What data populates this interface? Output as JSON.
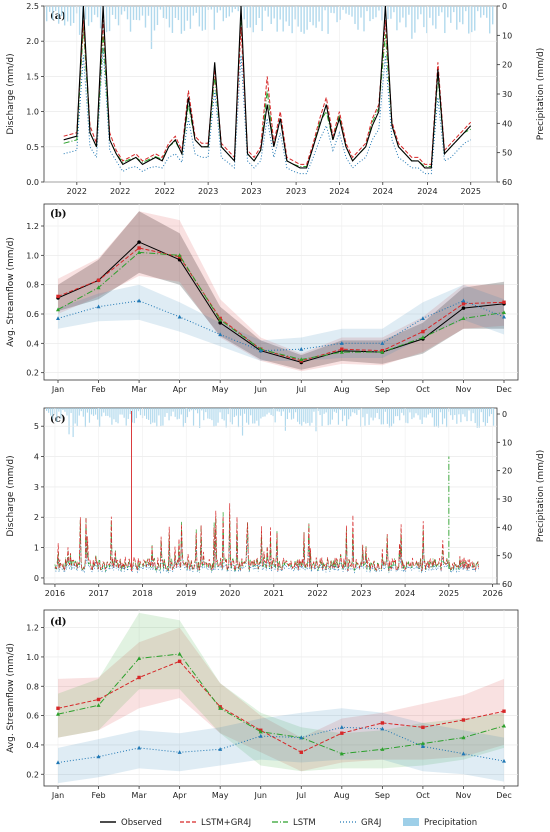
{
  "colors": {
    "observed": "#000000",
    "lstm_gr4j": "#d62728",
    "lstm": "#2ca02c",
    "gr4j": "#1f77b4",
    "precip": "#9ecfe8"
  },
  "legend": [
    "Observed",
    "LSTM+GR4J",
    "LSTM",
    "GR4J",
    "Precipitation"
  ],
  "chart_data": [
    {
      "panel": "(a)",
      "type": "line",
      "ylabel": "Discharge (mm/d)",
      "y2label": "Precipitation (mm/d)",
      "ylim": [
        0,
        2.5
      ],
      "y2lim": [
        60,
        0
      ],
      "xlim": [
        2021.75,
        2025.2
      ],
      "xticks": [
        "2022",
        "2022",
        "2022",
        "2023",
        "2023",
        "2023",
        "2024",
        "2024",
        "2024",
        "2025"
      ],
      "yticks": [
        "0.0",
        "0.5",
        "1.0",
        "1.5",
        "2.0",
        "2.5"
      ],
      "y2ticks": [
        "0",
        "10",
        "20",
        "30",
        "40",
        "50",
        "60"
      ],
      "x": [
        2021.9,
        2022.0,
        2022.05,
        2022.1,
        2022.15,
        2022.2,
        2022.25,
        2022.3,
        2022.35,
        2022.4,
        2022.45,
        2022.5,
        2022.55,
        2022.6,
        2022.65,
        2022.7,
        2022.75,
        2022.8,
        2022.85,
        2022.9,
        2022.95,
        2023.0,
        2023.05,
        2023.1,
        2023.15,
        2023.2,
        2023.25,
        2023.3,
        2023.35,
        2023.4,
        2023.45,
        2023.5,
        2023.55,
        2023.6,
        2023.65,
        2023.7,
        2023.75,
        2023.8,
        2023.85,
        2023.9,
        2023.95,
        2024.0,
        2024.05,
        2024.1,
        2024.15,
        2024.2,
        2024.25,
        2024.3,
        2024.35,
        2024.4,
        2024.45,
        2024.5,
        2024.55,
        2024.6,
        2024.65,
        2024.7,
        2024.75,
        2024.8,
        2024.85,
        2024.9,
        2024.95,
        2025.0
      ],
      "series": [
        {
          "name": "Observed",
          "values": [
            0.6,
            0.65,
            2.5,
            0.7,
            0.5,
            2.5,
            0.6,
            0.4,
            0.25,
            0.3,
            0.35,
            0.25,
            0.3,
            0.35,
            0.3,
            0.5,
            0.6,
            0.4,
            1.2,
            0.6,
            0.5,
            0.5,
            1.7,
            0.5,
            0.4,
            0.3,
            2.5,
            0.4,
            0.3,
            0.45,
            1.1,
            0.5,
            0.9,
            0.3,
            0.25,
            0.2,
            0.2,
            0.5,
            0.8,
            1.1,
            0.6,
            0.9,
            0.5,
            0.3,
            0.4,
            0.5,
            0.8,
            1.0,
            2.5,
            0.8,
            0.5,
            0.4,
            0.3,
            0.3,
            0.2,
            0.2,
            1.6,
            0.4,
            0.5,
            0.6,
            0.7,
            0.8
          ]
        },
        {
          "name": "LSTM+GR4J",
          "values": [
            0.65,
            0.7,
            2.3,
            0.8,
            0.55,
            2.3,
            0.7,
            0.45,
            0.3,
            0.35,
            0.4,
            0.3,
            0.35,
            0.4,
            0.35,
            0.55,
            0.65,
            0.45,
            1.3,
            0.65,
            0.55,
            0.55,
            1.6,
            0.55,
            0.45,
            0.35,
            2.2,
            0.45,
            0.35,
            0.5,
            1.5,
            0.55,
            1.0,
            0.35,
            0.3,
            0.25,
            0.25,
            0.55,
            0.9,
            1.2,
            0.65,
            1.0,
            0.55,
            0.35,
            0.45,
            0.55,
            0.9,
            1.1,
            2.3,
            0.85,
            0.55,
            0.45,
            0.35,
            0.35,
            0.25,
            0.25,
            1.7,
            0.45,
            0.55,
            0.65,
            0.75,
            0.85
          ]
        },
        {
          "name": "LSTM",
          "values": [
            0.55,
            0.6,
            2.2,
            0.7,
            0.5,
            2.1,
            0.6,
            0.4,
            0.28,
            0.32,
            0.35,
            0.28,
            0.32,
            0.36,
            0.32,
            0.5,
            0.58,
            0.4,
            1.1,
            0.6,
            0.5,
            0.5,
            1.5,
            0.5,
            0.4,
            0.3,
            2.4,
            0.4,
            0.3,
            0.45,
            1.3,
            0.5,
            0.9,
            0.3,
            0.25,
            0.22,
            0.22,
            0.5,
            0.85,
            1.0,
            0.6,
            0.95,
            0.5,
            0.3,
            0.4,
            0.5,
            0.85,
            1.05,
            2.1,
            0.8,
            0.5,
            0.4,
            0.3,
            0.3,
            0.22,
            0.22,
            1.5,
            0.4,
            0.5,
            0.6,
            0.7,
            0.75
          ]
        },
        {
          "name": "GR4J",
          "values": [
            0.4,
            0.45,
            1.8,
            0.5,
            0.35,
            1.9,
            0.45,
            0.3,
            0.15,
            0.2,
            0.22,
            0.15,
            0.2,
            0.22,
            0.2,
            0.35,
            0.4,
            0.28,
            0.9,
            0.4,
            0.35,
            0.35,
            1.3,
            0.35,
            0.28,
            0.2,
            1.8,
            0.3,
            0.2,
            0.3,
            0.9,
            0.35,
            0.7,
            0.2,
            0.15,
            0.12,
            0.12,
            0.35,
            0.6,
            0.8,
            0.45,
            0.7,
            0.35,
            0.2,
            0.28,
            0.35,
            0.6,
            0.75,
            1.8,
            0.6,
            0.35,
            0.28,
            0.2,
            0.2,
            0.12,
            0.12,
            1.2,
            0.3,
            0.35,
            0.45,
            0.55,
            0.6
          ]
        }
      ]
    },
    {
      "panel": "(b)",
      "type": "line",
      "ylabel": "Avg. Streamflow (mm/d)",
      "ylim": [
        0.15,
        1.35
      ],
      "categories": [
        "Jan",
        "Feb",
        "Mar",
        "Apr",
        "May",
        "Jun",
        "Jul",
        "Aug",
        "Sep",
        "Oct",
        "Nov",
        "Dec"
      ],
      "yticks": [
        "0.2",
        "0.4",
        "0.6",
        "0.8",
        "1.0",
        "1.2"
      ],
      "series": [
        {
          "name": "Observed",
          "values": [
            0.71,
            0.83,
            1.09,
            0.97,
            0.54,
            0.35,
            0.27,
            0.35,
            0.34,
            0.43,
            0.64,
            0.67
          ],
          "band": [
            [
              0.62,
              0.8
            ],
            [
              0.7,
              0.97
            ],
            [
              0.88,
              1.3
            ],
            [
              0.8,
              1.15
            ],
            [
              0.45,
              0.65
            ],
            [
              0.29,
              0.42
            ],
            [
              0.22,
              0.32
            ],
            [
              0.28,
              0.42
            ],
            [
              0.26,
              0.42
            ],
            [
              0.33,
              0.54
            ],
            [
              0.5,
              0.78
            ],
            [
              0.5,
              0.82
            ]
          ]
        },
        {
          "name": "LSTM+GR4J",
          "values": [
            0.72,
            0.83,
            1.05,
            0.99,
            0.57,
            0.36,
            0.28,
            0.36,
            0.35,
            0.48,
            0.67,
            0.68
          ],
          "band": [
            [
              0.6,
              0.84
            ],
            [
              0.72,
              0.98
            ],
            [
              0.86,
              1.3
            ],
            [
              0.82,
              1.24
            ],
            [
              0.44,
              0.7
            ],
            [
              0.28,
              0.44
            ],
            [
              0.21,
              0.33
            ],
            [
              0.26,
              0.44
            ],
            [
              0.25,
              0.44
            ],
            [
              0.34,
              0.58
            ],
            [
              0.5,
              0.8
            ],
            [
              0.52,
              0.8
            ]
          ]
        },
        {
          "name": "LSTM",
          "values": [
            0.63,
            0.78,
            1.02,
            1.0,
            0.56,
            0.36,
            0.29,
            0.34,
            0.34,
            0.44,
            0.57,
            0.61
          ]
        },
        {
          "name": "GR4J",
          "values": [
            0.57,
            0.65,
            0.69,
            0.58,
            0.46,
            0.35,
            0.36,
            0.4,
            0.4,
            0.57,
            0.69,
            0.58
          ],
          "band": [
            [
              0.5,
              0.64
            ],
            [
              0.55,
              0.74
            ],
            [
              0.56,
              0.8
            ],
            [
              0.48,
              0.68
            ],
            [
              0.38,
              0.54
            ],
            [
              0.28,
              0.42
            ],
            [
              0.28,
              0.44
            ],
            [
              0.3,
              0.5
            ],
            [
              0.3,
              0.5
            ],
            [
              0.44,
              0.68
            ],
            [
              0.56,
              0.8
            ],
            [
              0.46,
              0.7
            ]
          ]
        }
      ]
    },
    {
      "panel": "(c)",
      "type": "line",
      "ylabel": "Discharge (mm/d)",
      "y2label": "Precipitation (mm/d)",
      "ylim": [
        -0.2,
        5.6
      ],
      "y2lim": [
        60,
        0
      ],
      "xlim": [
        2015.75,
        2026.1
      ],
      "xticks": [
        "2016",
        "2017",
        "2018",
        "2019",
        "2020",
        "2021",
        "2022",
        "2023",
        "2024",
        "2025",
        "2026"
      ],
      "yticks": [
        "0",
        "1",
        "2",
        "3",
        "4",
        "5"
      ],
      "y2ticks": [
        "0",
        "10",
        "20",
        "30",
        "40",
        "50",
        "60"
      ]
    },
    {
      "panel": "(d)",
      "type": "line",
      "ylabel": "Avg. Streamflow (mm/d)",
      "ylim": [
        0.12,
        1.32
      ],
      "categories": [
        "Jan",
        "Feb",
        "Mar",
        "Apr",
        "May",
        "Jun",
        "Jul",
        "Aug",
        "Sep",
        "Oct",
        "Nov",
        "Dec"
      ],
      "yticks": [
        "0.2",
        "0.4",
        "0.6",
        "0.8",
        "1.0",
        "1.2"
      ],
      "series": [
        {
          "name": "LSTM+GR4J",
          "values": [
            0.65,
            0.71,
            0.86,
            0.97,
            0.66,
            0.5,
            0.35,
            0.48,
            0.55,
            0.52,
            0.57,
            0.63
          ],
          "band": [
            [
              0.45,
              0.85
            ],
            [
              0.5,
              0.86
            ],
            [
              0.65,
              1.1
            ],
            [
              0.72,
              1.2
            ],
            [
              0.48,
              0.82
            ],
            [
              0.35,
              0.6
            ],
            [
              0.22,
              0.45
            ],
            [
              0.28,
              0.58
            ],
            [
              0.3,
              0.62
            ],
            [
              0.3,
              0.68
            ],
            [
              0.32,
              0.74
            ],
            [
              0.4,
              0.85
            ]
          ]
        },
        {
          "name": "LSTM",
          "values": [
            0.61,
            0.67,
            0.99,
            1.02,
            0.65,
            0.49,
            0.45,
            0.34,
            0.37,
            0.41,
            0.45,
            0.53
          ],
          "band": [
            [
              0.45,
              0.75
            ],
            [
              0.5,
              0.85
            ],
            [
              0.78,
              1.3
            ],
            [
              0.78,
              1.25
            ],
            [
              0.48,
              0.82
            ],
            [
              0.26,
              0.62
            ],
            [
              0.22,
              0.52
            ],
            [
              0.24,
              0.48
            ],
            [
              0.24,
              0.5
            ],
            [
              0.26,
              0.55
            ],
            [
              0.3,
              0.58
            ],
            [
              0.38,
              0.62
            ]
          ]
        },
        {
          "name": "GR4J",
          "values": [
            0.28,
            0.32,
            0.38,
            0.35,
            0.37,
            0.46,
            0.45,
            0.52,
            0.51,
            0.39,
            0.34,
            0.29
          ],
          "band": [
            [
              0.14,
              0.38
            ],
            [
              0.18,
              0.44
            ],
            [
              0.24,
              0.5
            ],
            [
              0.22,
              0.48
            ],
            [
              0.26,
              0.52
            ],
            [
              0.3,
              0.58
            ],
            [
              0.28,
              0.62
            ],
            [
              0.3,
              0.65
            ],
            [
              0.3,
              0.62
            ],
            [
              0.22,
              0.55
            ],
            [
              0.2,
              0.5
            ],
            [
              0.15,
              0.45
            ]
          ]
        }
      ]
    }
  ]
}
